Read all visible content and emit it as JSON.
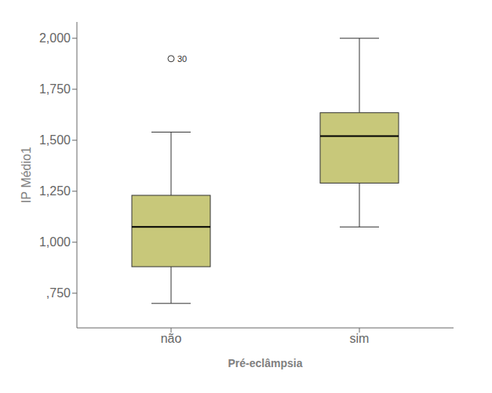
{
  "chart_data": {
    "type": "box",
    "xlabel": "Pré-eclâmpsia",
    "ylabel": "IP Médio1",
    "categories": [
      "não",
      "sim"
    ],
    "boxes": [
      {
        "whislo": 0.7,
        "q1": 0.88,
        "med": 1.075,
        "q3": 1.23,
        "whishi": 1.54,
        "fliers": [
          1.9
        ]
      },
      {
        "whislo": 1.075,
        "q1": 1.29,
        "med": 1.52,
        "q3": 1.635,
        "whishi": 2.0,
        "fliers": []
      }
    ],
    "color": "#c8c87a",
    "ylim": [
      0.58,
      2.08
    ],
    "yticks": [
      {
        "value": 0.75,
        "label": ",750"
      },
      {
        "value": 1.0,
        "label": "1,000"
      },
      {
        "value": 1.25,
        "label": "1,250"
      },
      {
        "value": 1.5,
        "label": "1,500"
      },
      {
        "value": 1.75,
        "label": "1,750"
      },
      {
        "value": 2.0,
        "label": "2,000"
      }
    ],
    "annotations": [
      {
        "text": "30",
        "x": "não",
        "y": 1.9
      }
    ],
    "grid": false
  }
}
